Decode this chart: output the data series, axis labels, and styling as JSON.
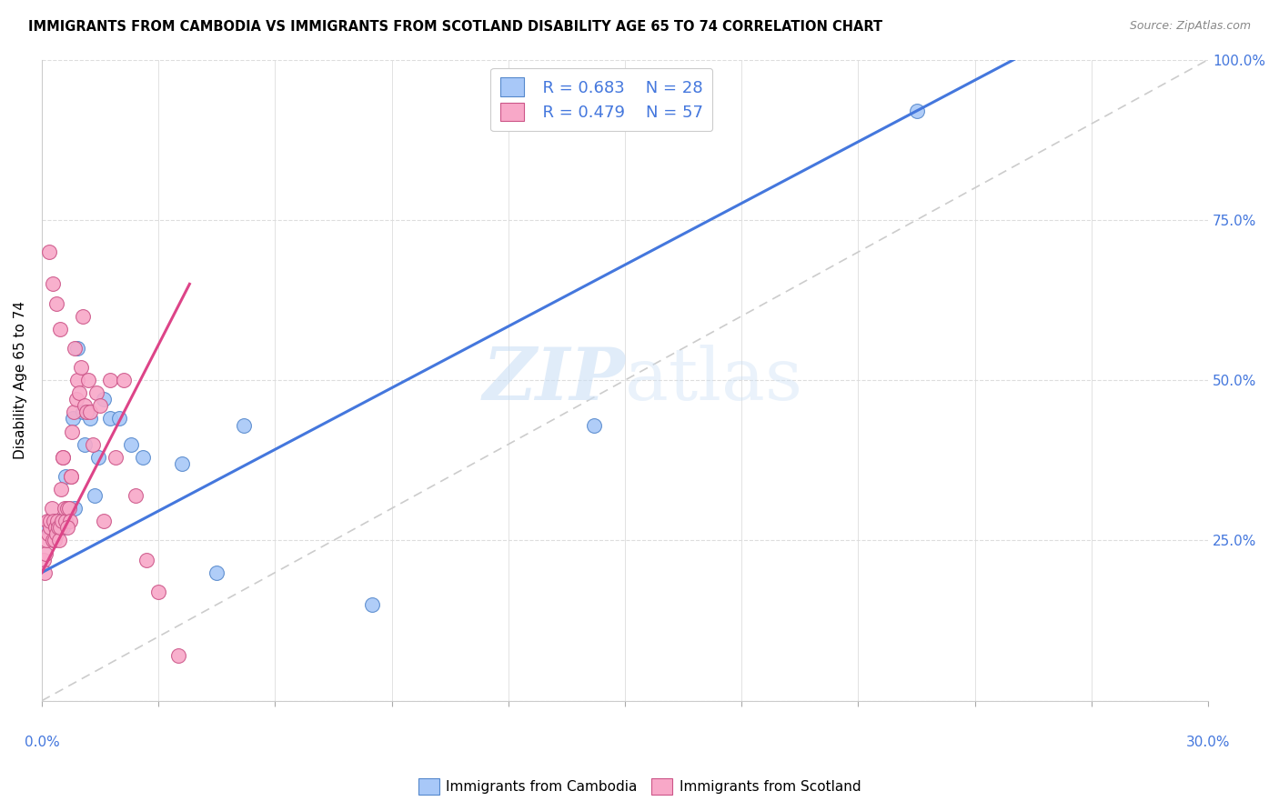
{
  "title": "IMMIGRANTS FROM CAMBODIA VS IMMIGRANTS FROM SCOTLAND DISABILITY AGE 65 TO 74 CORRELATION CHART",
  "source": "Source: ZipAtlas.com",
  "ylabel": "Disability Age 65 to 74",
  "xmin": 0.0,
  "xmax": 30.0,
  "ymin": 0.0,
  "ymax": 100.0,
  "legend_r1": "R = 0.683",
  "legend_n1": "N = 28",
  "legend_r2": "R = 0.479",
  "legend_n2": "N = 57",
  "cambodia_color": "#a8c8f8",
  "scotland_color": "#f8a8c8",
  "cambodia_edge": "#5588cc",
  "scotland_edge": "#cc5588",
  "blue_line_color": "#4477dd",
  "pink_line_color": "#dd4488",
  "ref_line_color": "#cccccc",
  "watermark_color": "#ddeeff",
  "right_tick_color": "#4477dd",
  "cam_line_x0": 0.0,
  "cam_line_y0": 20.0,
  "cam_line_x1": 25.0,
  "cam_line_y1": 100.0,
  "scot_line_x0": 0.0,
  "scot_line_y0": 20.0,
  "scot_line_x1": 3.8,
  "scot_line_y1": 65.0,
  "cambodia_x": [
    0.15,
    0.22,
    0.32,
    0.4,
    0.45,
    0.55,
    0.62,
    0.7,
    0.8,
    0.92,
    1.05,
    1.15,
    1.25,
    1.45,
    1.6,
    1.75,
    2.0,
    2.3,
    2.6,
    3.6,
    5.2,
    8.5,
    14.2,
    22.5,
    1.1,
    0.85,
    4.5,
    1.35
  ],
  "cambodia_y": [
    27,
    27,
    28,
    28,
    27,
    27,
    35,
    30,
    44,
    55,
    45,
    45,
    44,
    38,
    47,
    44,
    44,
    40,
    38,
    37,
    43,
    15,
    43,
    92,
    40,
    30,
    20,
    32
  ],
  "scotland_x": [
    0.05,
    0.08,
    0.1,
    0.12,
    0.15,
    0.17,
    0.2,
    0.22,
    0.25,
    0.28,
    0.3,
    0.33,
    0.35,
    0.38,
    0.4,
    0.42,
    0.45,
    0.48,
    0.5,
    0.52,
    0.55,
    0.58,
    0.6,
    0.65,
    0.7,
    0.72,
    0.75,
    0.78,
    0.82,
    0.85,
    0.9,
    0.92,
    0.95,
    1.0,
    1.05,
    1.1,
    1.15,
    1.2,
    1.25,
    1.3,
    1.4,
    1.5,
    1.6,
    1.75,
    1.9,
    2.1,
    2.4,
    2.7,
    3.0,
    3.5,
    0.18,
    0.28,
    0.38,
    0.48,
    0.55,
    0.65,
    0.75
  ],
  "scotland_y": [
    22,
    20,
    23,
    25,
    28,
    26,
    27,
    28,
    30,
    25,
    28,
    25,
    27,
    26,
    28,
    27,
    25,
    27,
    33,
    28,
    38,
    30,
    28,
    30,
    30,
    28,
    35,
    42,
    45,
    55,
    47,
    50,
    48,
    52,
    60,
    46,
    45,
    50,
    45,
    40,
    48,
    46,
    28,
    50,
    38,
    50,
    32,
    22,
    17,
    7,
    70,
    65,
    62,
    58,
    38,
    27,
    35
  ]
}
